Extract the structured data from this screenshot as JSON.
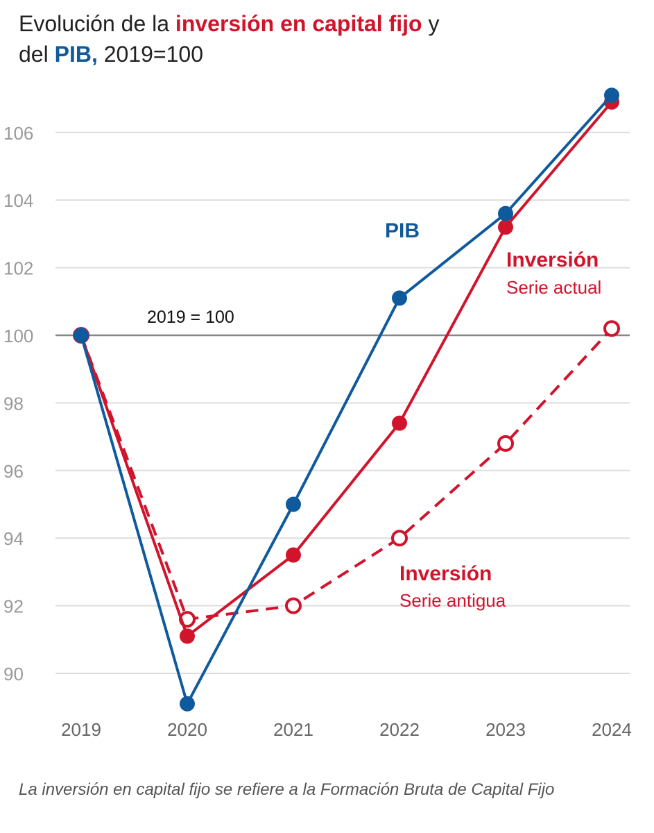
{
  "title": {
    "part1": "Evolución de la ",
    "part2": "inversión en capital fijo",
    "part3": " y",
    "part4": "del ",
    "part5": "PIB,",
    "part6": " 2019=100"
  },
  "colors": {
    "pib": "#0f5a9c",
    "inversion": "#d0142c",
    "grid": "#dddddd",
    "baseline": "#888888",
    "tick": "#999999"
  },
  "chart_data": {
    "type": "line",
    "x": [
      "2019",
      "2020",
      "2021",
      "2022",
      "2023",
      "2024"
    ],
    "ylim": [
      89,
      107.5
    ],
    "yticks": [
      90,
      92,
      94,
      96,
      98,
      100,
      102,
      104,
      106
    ],
    "grid": true,
    "reference_line": {
      "value": 100,
      "label": "2019 = 100"
    },
    "series": [
      {
        "name": "PIB",
        "style": "solid",
        "marker": "filled",
        "values": [
          100,
          89.1,
          95.0,
          101.1,
          103.6,
          107.1
        ]
      },
      {
        "name": "Inversión",
        "sublabel": "Serie actual",
        "style": "solid",
        "marker": "filled",
        "values": [
          100,
          91.1,
          93.5,
          97.4,
          103.2,
          106.9
        ]
      },
      {
        "name": "Inversión",
        "sublabel": "Serie antigua",
        "style": "dashed",
        "marker": "open",
        "values": [
          100,
          91.6,
          92.0,
          94.0,
          96.8,
          100.2
        ]
      }
    ]
  },
  "caption": "La inversión en capital fijo se refiere a la Formación Bruta de Capital Fijo"
}
